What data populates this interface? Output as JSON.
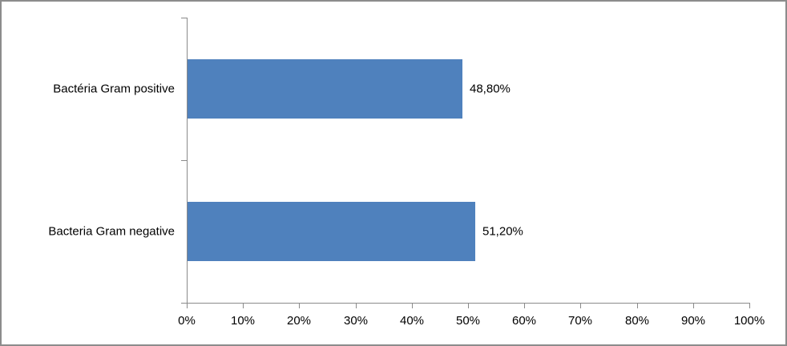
{
  "chart_data": {
    "type": "bar",
    "orientation": "horizontal",
    "title": "",
    "xlabel": "",
    "ylabel": "",
    "categories": [
      "Bactéria Gram positive",
      "Bacteria Gram negative"
    ],
    "values": [
      48.8,
      51.2
    ],
    "data_labels": [
      "48,80%",
      "51,20%"
    ],
    "x_tick_labels": [
      "0%",
      "10%",
      "20%",
      "30%",
      "40%",
      "50%",
      "60%",
      "70%",
      "80%",
      "90%",
      "100%"
    ],
    "x_tick_values": [
      0,
      10,
      20,
      30,
      40,
      50,
      60,
      70,
      80,
      90,
      100
    ],
    "xlim": [
      0,
      100
    ],
    "grid": false,
    "legend": null,
    "colors": {
      "bar_fill": "#4F81BD",
      "axis_line": "#8A8A8A",
      "text": "#000000",
      "frame_border": "#8C8C8C",
      "background": "#FFFFFF"
    }
  }
}
